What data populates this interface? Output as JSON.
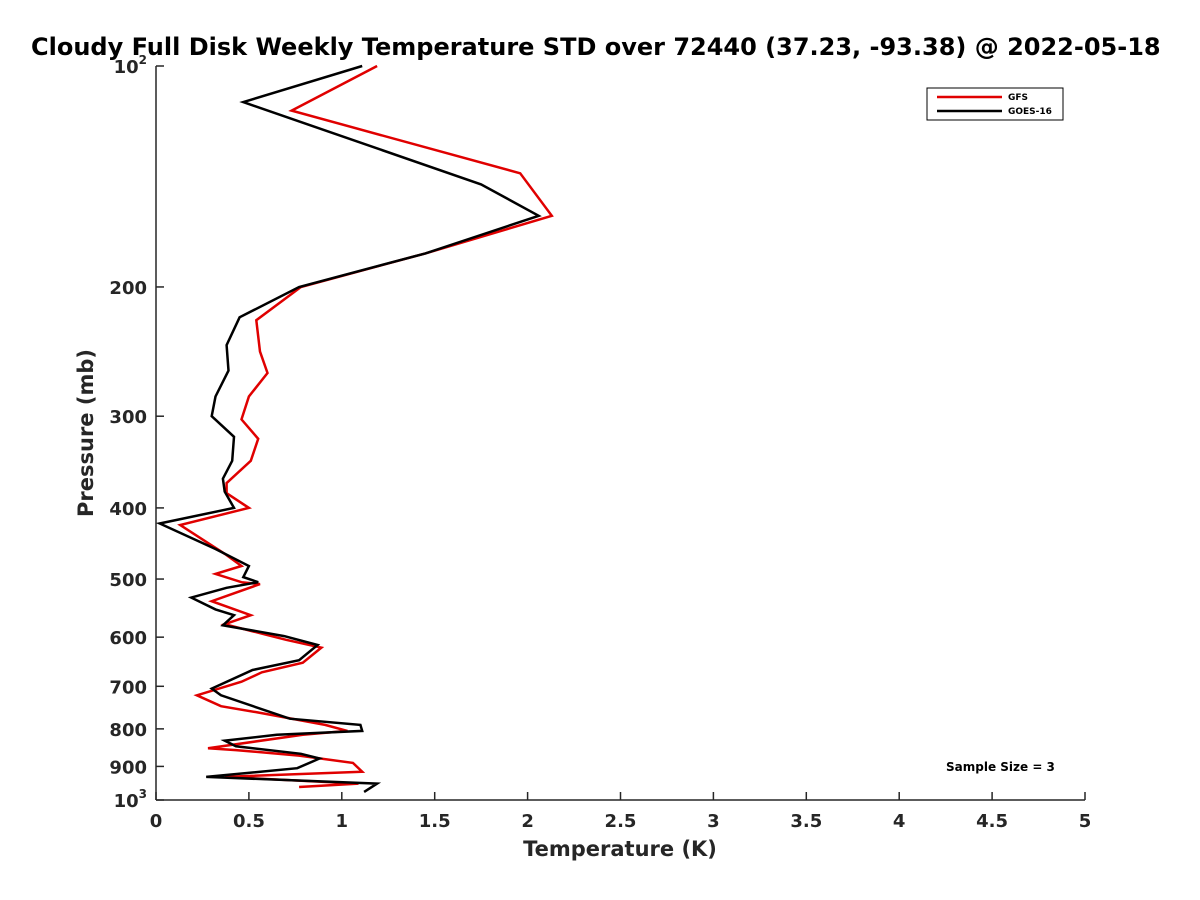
{
  "chart_data": {
    "type": "line",
    "title": "Cloudy Full Disk Weekly Temperature STD over 72440 (37.23, -93.38) @ 2022-05-18",
    "xlabel": "Temperature (K)",
    "ylabel": "Pressure (mb)",
    "xlim": [
      0,
      5
    ],
    "ylim": [
      100,
      1000
    ],
    "yscale": "log",
    "y_reversed": true,
    "x_ticks": [
      "0",
      "0.5",
      "1",
      "1.5",
      "2",
      "2.5",
      "3",
      "3.5",
      "4",
      "4.5",
      "5"
    ],
    "x_tick_values": [
      0,
      0.5,
      1,
      1.5,
      2,
      2.5,
      3,
      3.5,
      4,
      4.5,
      5
    ],
    "y_ticks": [
      {
        "value": 100,
        "base": "10",
        "exp": "2",
        "label": ""
      },
      {
        "value": 200,
        "label": "200"
      },
      {
        "value": 300,
        "label": "300"
      },
      {
        "value": 400,
        "label": "400"
      },
      {
        "value": 500,
        "label": "500"
      },
      {
        "value": 600,
        "label": "600"
      },
      {
        "value": 700,
        "label": "700"
      },
      {
        "value": 800,
        "label": "800"
      },
      {
        "value": 900,
        "label": "900"
      },
      {
        "value": 1000,
        "base": "10",
        "exp": "3",
        "label": ""
      }
    ],
    "grid": false,
    "legend_position": "top-right",
    "annotation": "Sample Size = 3",
    "series": [
      {
        "name": "GFS",
        "color": "#e00000",
        "points": [
          [
            1.19,
            100
          ],
          [
            0.73,
            115
          ],
          [
            1.96,
            140
          ],
          [
            2.13,
            160
          ],
          [
            1.45,
            180
          ],
          [
            0.78,
            200
          ],
          [
            0.54,
            222
          ],
          [
            0.56,
            245
          ],
          [
            0.6,
            262
          ],
          [
            0.5,
            282
          ],
          [
            0.46,
            303
          ],
          [
            0.55,
            322
          ],
          [
            0.51,
            345
          ],
          [
            0.38,
            370
          ],
          [
            0.38,
            382
          ],
          [
            0.5,
            400
          ],
          [
            0.13,
            422
          ],
          [
            0.37,
            462
          ],
          [
            0.46,
            480
          ],
          [
            0.32,
            492
          ],
          [
            0.46,
            505
          ],
          [
            0.56,
            508
          ],
          [
            0.3,
            536
          ],
          [
            0.51,
            560
          ],
          [
            0.37,
            576
          ],
          [
            0.7,
            605
          ],
          [
            0.89,
            620
          ],
          [
            0.79,
            650
          ],
          [
            0.57,
            670
          ],
          [
            0.46,
            690
          ],
          [
            0.22,
            720
          ],
          [
            0.35,
            745
          ],
          [
            0.55,
            760
          ],
          [
            0.91,
            790
          ],
          [
            1.03,
            805
          ],
          [
            0.79,
            815
          ],
          [
            0.28,
            850
          ],
          [
            0.43,
            855
          ],
          [
            0.77,
            870
          ],
          [
            1.06,
            890
          ],
          [
            1.11,
            915
          ],
          [
            0.37,
            930
          ],
          [
            1.09,
            950
          ],
          [
            0.77,
            960
          ]
        ]
      },
      {
        "name": "GOES-16",
        "color": "#000000",
        "points": [
          [
            1.11,
            100
          ],
          [
            0.47,
            112
          ],
          [
            1.75,
            145
          ],
          [
            2.06,
            160
          ],
          [
            1.45,
            180
          ],
          [
            0.77,
            200
          ],
          [
            0.45,
            220
          ],
          [
            0.38,
            240
          ],
          [
            0.39,
            260
          ],
          [
            0.32,
            282
          ],
          [
            0.3,
            300
          ],
          [
            0.42,
            320
          ],
          [
            0.41,
            345
          ],
          [
            0.36,
            365
          ],
          [
            0.37,
            380
          ],
          [
            0.42,
            400
          ],
          [
            0.02,
            420
          ],
          [
            0.32,
            455
          ],
          [
            0.5,
            480
          ],
          [
            0.47,
            497
          ],
          [
            0.55,
            505
          ],
          [
            0.38,
            514
          ],
          [
            0.19,
            530
          ],
          [
            0.32,
            550
          ],
          [
            0.42,
            560
          ],
          [
            0.36,
            578
          ],
          [
            0.69,
            598
          ],
          [
            0.87,
            615
          ],
          [
            0.77,
            645
          ],
          [
            0.52,
            665
          ],
          [
            0.3,
            705
          ],
          [
            0.35,
            720
          ],
          [
            0.72,
            775
          ],
          [
            1.1,
            790
          ],
          [
            1.11,
            805
          ],
          [
            0.65,
            815
          ],
          [
            0.37,
            830
          ],
          [
            0.43,
            845
          ],
          [
            0.78,
            865
          ],
          [
            0.88,
            878
          ],
          [
            0.76,
            905
          ],
          [
            0.27,
            930
          ],
          [
            1.19,
            950
          ],
          [
            1.12,
            975
          ]
        ]
      }
    ]
  }
}
